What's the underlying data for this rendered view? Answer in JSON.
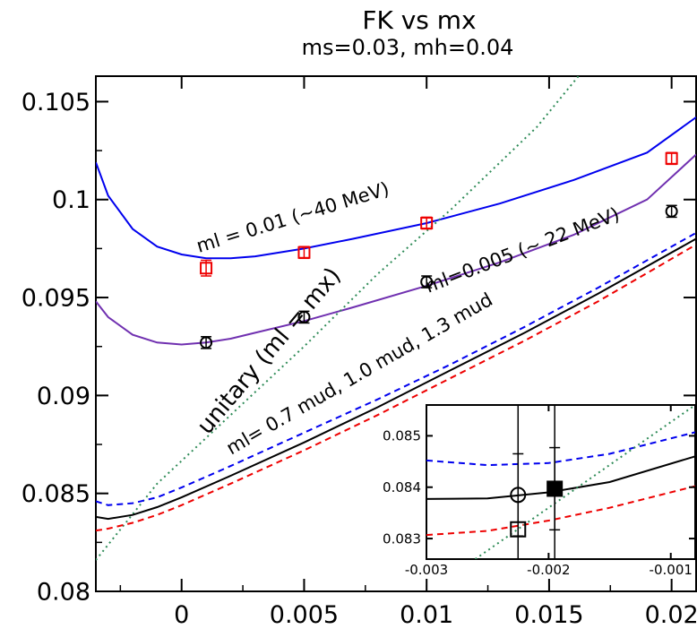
{
  "chart_data": [
    {
      "type": "line",
      "title": "FK  vs mx",
      "subtitle": "ms=0.03, mh=0.04",
      "xlabel": "",
      "ylabel": "",
      "xlim": [
        -0.0035,
        0.021
      ],
      "ylim": [
        0.08,
        0.1063
      ],
      "grid": false,
      "x_ticks": [
        0,
        0.005,
        0.01,
        0.015,
        0.02
      ],
      "x_tick_labels": [
        "0",
        "0.005",
        "0.01",
        "0.015",
        "0.02"
      ],
      "y_ticks": [
        0.08,
        0.085,
        0.09,
        0.095,
        0.1,
        0.105
      ],
      "y_tick_labels": [
        "0.08",
        "0.085",
        "0.09",
        "0.095",
        "0.1",
        "0.105"
      ],
      "series": [
        {
          "name": "ml = 0.01 (~40 MeV)",
          "style": "solid",
          "color": "#0000ee",
          "x": [
            -0.0035,
            -0.003,
            -0.002,
            -0.001,
            0,
            0.001,
            0.002,
            0.003,
            0.005,
            0.007,
            0.01,
            0.013,
            0.016,
            0.019,
            0.021
          ],
          "y": [
            0.1019,
            0.1002,
            0.0985,
            0.0976,
            0.0972,
            0.097,
            0.097,
            0.0971,
            0.0975,
            0.098,
            0.0988,
            0.0998,
            0.101,
            0.1024,
            0.1042
          ]
        },
        {
          "name": "ml=0.005 (~ 22 MeV)",
          "style": "solid",
          "color": "#7030b0",
          "x": [
            -0.0035,
            -0.003,
            -0.002,
            -0.001,
            0,
            0.001,
            0.002,
            0.003,
            0.005,
            0.007,
            0.01,
            0.013,
            0.016,
            0.019,
            0.021
          ],
          "y": [
            0.0948,
            0.094,
            0.0931,
            0.0927,
            0.0926,
            0.0927,
            0.0929,
            0.0932,
            0.0938,
            0.0945,
            0.0956,
            0.0968,
            0.0982,
            0.1,
            0.1023
          ]
        },
        {
          "name": "unitary (ml = mx)",
          "style": "dotted",
          "color": "#2e8b57",
          "x": [
            -0.0035,
            -0.001,
            0.002,
            0.005,
            0.008,
            0.011,
            0.0145,
            0.0162
          ],
          "y": [
            0.0816,
            0.0855,
            0.089,
            0.0925,
            0.0962,
            0.0995,
            0.1037,
            0.1063
          ]
        },
        {
          "name": "1.3 mud",
          "style": "dashed",
          "color": "#0000ee",
          "x": [
            -0.0035,
            -0.003,
            -0.002,
            -0.001,
            0,
            0.002,
            0.005,
            0.008,
            0.011,
            0.014,
            0.017,
            0.021
          ],
          "y": [
            0.0846,
            0.0844,
            0.0845,
            0.0848,
            0.0853,
            0.0864,
            0.0881,
            0.0898,
            0.0916,
            0.0935,
            0.0955,
            0.0983
          ]
        },
        {
          "name": "1.0 mud",
          "style": "solid",
          "color": "#000000",
          "x": [
            -0.0035,
            -0.003,
            -0.002,
            -0.001,
            0,
            0.002,
            0.005,
            0.008,
            0.011,
            0.014,
            0.017,
            0.021
          ],
          "y": [
            0.0838,
            0.0837,
            0.0839,
            0.0843,
            0.0848,
            0.0859,
            0.0876,
            0.0894,
            0.0913,
            0.0932,
            0.0952,
            0.098
          ]
        },
        {
          "name": "0.7 mud",
          "style": "dashed",
          "color": "#ee0000",
          "x": [
            -0.0035,
            -0.003,
            -0.002,
            -0.001,
            0,
            0.002,
            0.005,
            0.008,
            0.011,
            0.014,
            0.017,
            0.021
          ],
          "y": [
            0.0831,
            0.0832,
            0.0835,
            0.0839,
            0.0844,
            0.0855,
            0.0872,
            0.089,
            0.0909,
            0.0928,
            0.0948,
            0.0977
          ]
        }
      ],
      "points": [
        {
          "series": "ml = 0.01 (~40 MeV)",
          "marker": "square",
          "color": "#ee0000",
          "x": [
            0.001,
            0.005,
            0.01,
            0.02
          ],
          "y": [
            0.0965,
            0.0973,
            0.0988,
            0.1021
          ],
          "err": [
            0.0004,
            0.0003,
            0.0003,
            0.0003
          ]
        },
        {
          "series": "ml=0.005 (~ 22 MeV)",
          "marker": "circle",
          "color": "#000000",
          "x": [
            0.001,
            0.005,
            0.01,
            0.02
          ],
          "y": [
            0.0927,
            0.094,
            0.0958,
            0.0994
          ],
          "err": [
            0.0003,
            0.0003,
            0.0003,
            0.0003
          ]
        }
      ],
      "annotations": [
        {
          "text": "ml = 0.01 (~40 MeV)",
          "color": "#000000"
        },
        {
          "text": "ml=0.005 (~ 22 MeV)",
          "color": "#000000"
        },
        {
          "text": "unitary (ml = mx)",
          "color": "#000000"
        },
        {
          "text": "ml=  0.7 mud,  1.0 mud,  1.3 mud",
          "color": "#000000"
        }
      ]
    },
    {
      "type": "line",
      "title": "",
      "xlim": [
        -0.003,
        -0.0008
      ],
      "ylim": [
        0.0826,
        0.0856
      ],
      "grid": false,
      "x_ticks": [
        -0.003,
        -0.002,
        -0.001
      ],
      "x_tick_labels": [
        "-0.003",
        "-0.002",
        "-0.001"
      ],
      "y_ticks": [
        0.083,
        0.084,
        0.085
      ],
      "y_tick_labels": [
        "0.083",
        "0.084",
        "0.085"
      ],
      "series": [
        {
          "name": "1.3 mud",
          "style": "dashed",
          "color": "#0000ee",
          "x": [
            -0.003,
            -0.0025,
            -0.002,
            -0.0015,
            -0.0008
          ],
          "y": [
            0.08452,
            0.08443,
            0.08447,
            0.08465,
            0.08507
          ]
        },
        {
          "name": "1.0 mud",
          "style": "solid",
          "color": "#000000",
          "x": [
            -0.003,
            -0.0025,
            -0.002,
            -0.0015,
            -0.0008
          ],
          "y": [
            0.08377,
            0.08378,
            0.0839,
            0.0841,
            0.0846
          ]
        },
        {
          "name": "0.7 mud",
          "style": "dashed",
          "color": "#ee0000",
          "x": [
            -0.003,
            -0.0025,
            -0.002,
            -0.0015,
            -0.0008
          ],
          "y": [
            0.08307,
            0.08315,
            0.08335,
            0.0836,
            0.08402
          ]
        },
        {
          "name": "unitary (ml = mx)",
          "style": "dotted",
          "color": "#2e8b57",
          "x": [
            -0.0026,
            -0.0008
          ],
          "y": [
            0.0826,
            0.0856
          ]
        }
      ],
      "points": [
        {
          "marker": "circle-open",
          "color": "#000000",
          "x": [
            -0.00225
          ],
          "y": [
            0.08385
          ],
          "err": [
            0.0008
          ]
        },
        {
          "marker": "square-filled",
          "color": "#000000",
          "x": [
            -0.00195
          ],
          "y": [
            0.08397
          ],
          "err": [
            0.0008
          ]
        },
        {
          "marker": "square-open",
          "color": "#000000",
          "x": [
            -0.00225
          ],
          "y": [
            0.08318
          ],
          "err": [
            0
          ]
        }
      ],
      "vlines": [
        -0.00225,
        -0.00195
      ]
    }
  ]
}
